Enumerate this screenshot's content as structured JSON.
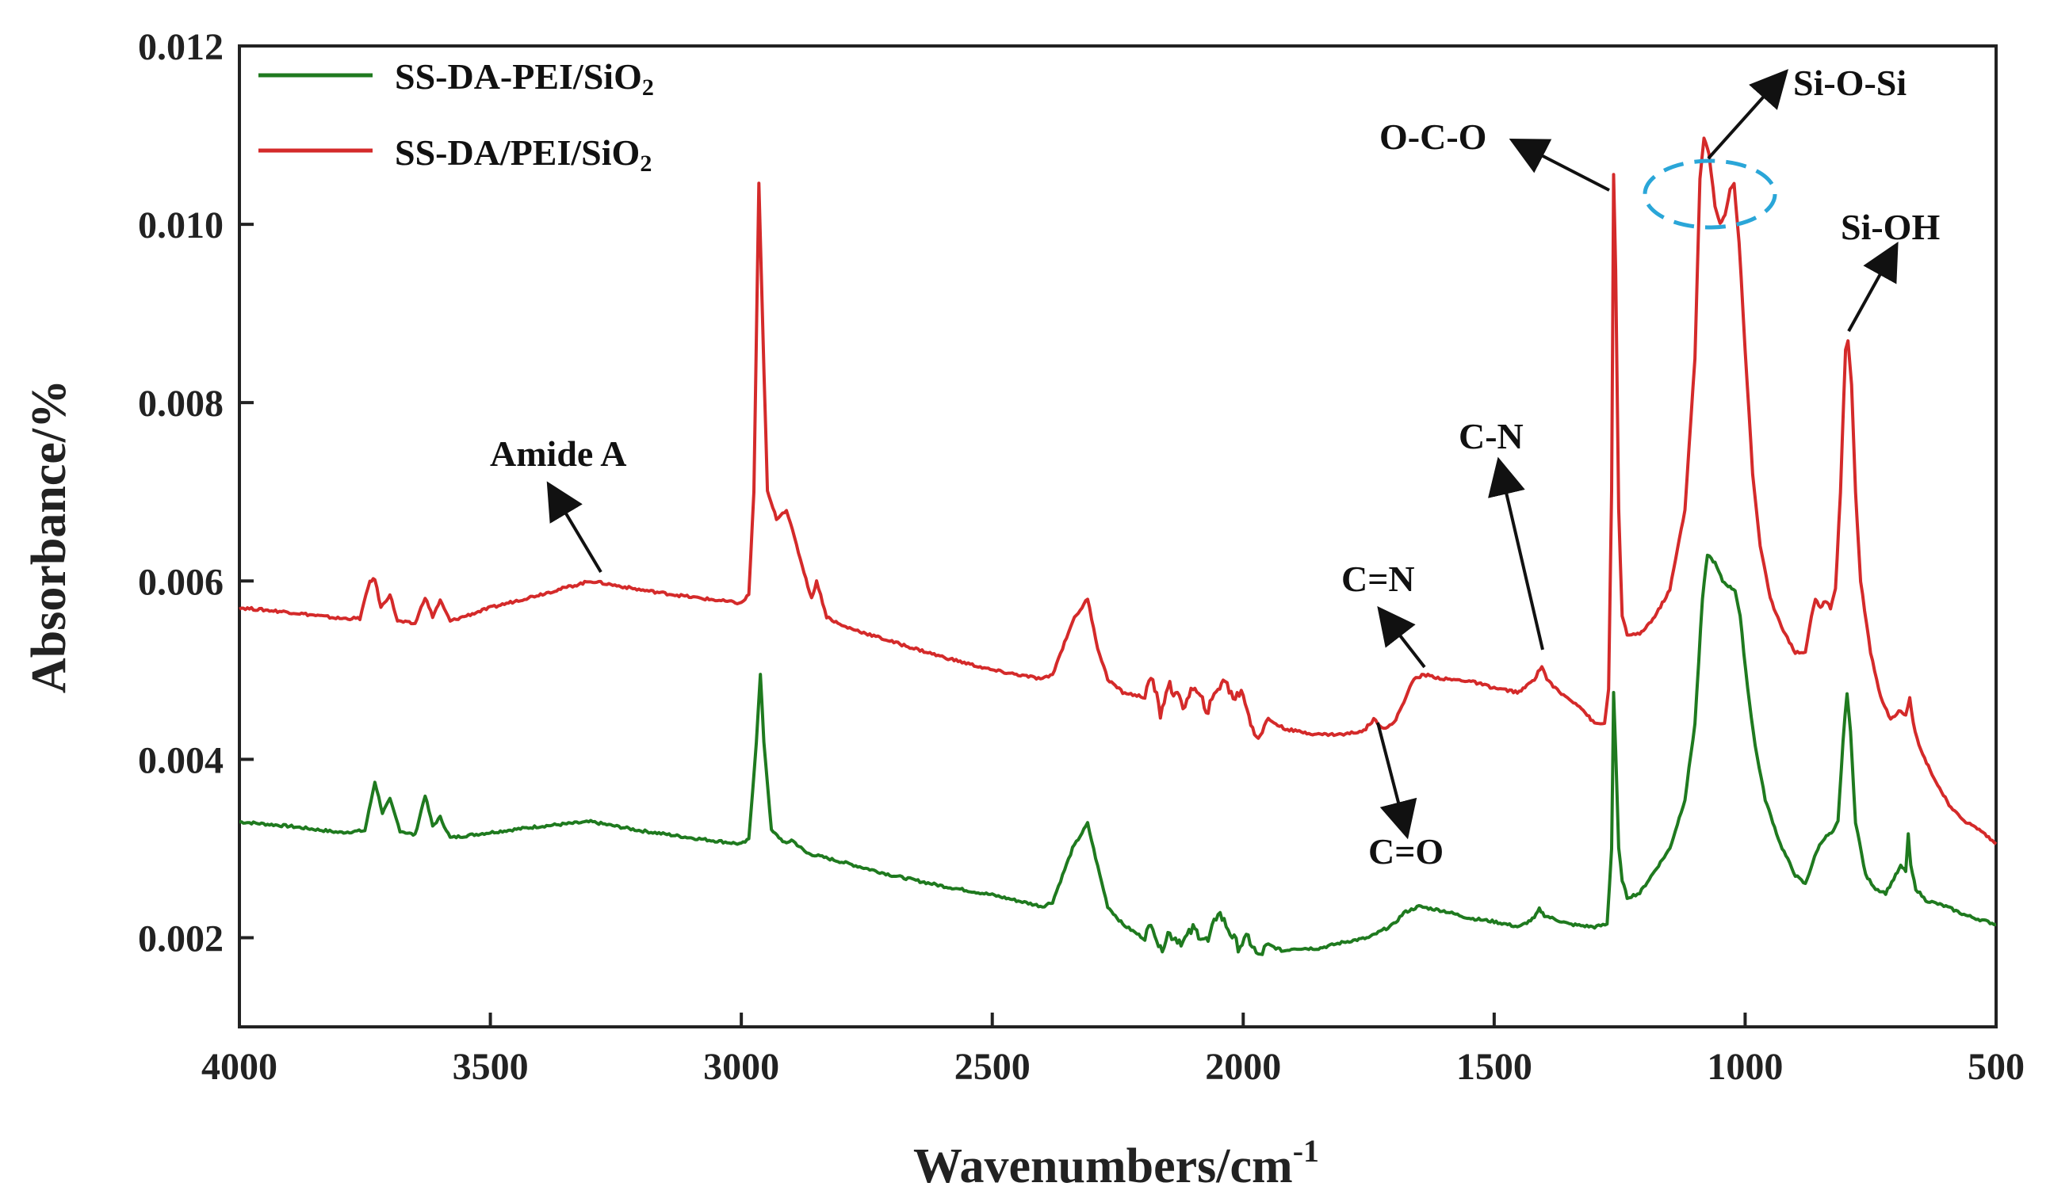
{
  "chart_data": {
    "type": "line",
    "title": "",
    "xlabel": "Wavenumbers/cm",
    "xlabel_sup": "-1",
    "ylabel": "Absorbance/%",
    "xlim": [
      4000,
      500
    ],
    "ylim": [
      0.001,
      0.012
    ],
    "x_ticks": [
      4000,
      3500,
      3000,
      2500,
      2000,
      1500,
      1000,
      500
    ],
    "y_ticks": [
      0.002,
      0.004,
      0.006,
      0.008,
      0.01,
      0.012
    ],
    "y_tick_labels": [
      "0.002",
      "0.004",
      "0.006",
      "0.008",
      "0.010",
      "0.012"
    ],
    "x_tick_labels": [
      "4000",
      "3500",
      "3000",
      "2500",
      "2000",
      "1500",
      "1000",
      "500"
    ],
    "legend_position": "top-left",
    "series": [
      {
        "name": "SS-DA-PEI/SiO",
        "name_sub": "2",
        "color": "#1f7a1f",
        "points": [
          [
            4000,
            0.0033
          ],
          [
            3900,
            0.00325
          ],
          [
            3800,
            0.00318
          ],
          [
            3750,
            0.0032
          ],
          [
            3730,
            0.00375
          ],
          [
            3715,
            0.0034
          ],
          [
            3700,
            0.00355
          ],
          [
            3680,
            0.0032
          ],
          [
            3650,
            0.00315
          ],
          [
            3630,
            0.0036
          ],
          [
            3615,
            0.00325
          ],
          [
            3600,
            0.00335
          ],
          [
            3580,
            0.00312
          ],
          [
            3500,
            0.00318
          ],
          [
            3400,
            0.00325
          ],
          [
            3300,
            0.0033
          ],
          [
            3200,
            0.0032
          ],
          [
            3100,
            0.00312
          ],
          [
            3000,
            0.00305
          ],
          [
            2985,
            0.0031
          ],
          [
            2970,
            0.0042
          ],
          [
            2962,
            0.00495
          ],
          [
            2955,
            0.0042
          ],
          [
            2940,
            0.0032
          ],
          [
            2910,
            0.00305
          ],
          [
            2900,
            0.0031
          ],
          [
            2870,
            0.00295
          ],
          [
            2800,
            0.00285
          ],
          [
            2700,
            0.0027
          ],
          [
            2600,
            0.00258
          ],
          [
            2500,
            0.00248
          ],
          [
            2400,
            0.00235
          ],
          [
            2380,
            0.0024
          ],
          [
            2340,
            0.003
          ],
          [
            2310,
            0.00328
          ],
          [
            2290,
            0.0028
          ],
          [
            2270,
            0.00235
          ],
          [
            2240,
            0.00215
          ],
          [
            2200,
            0.002
          ],
          [
            2180,
            0.00215
          ],
          [
            2165,
            0.00185
          ],
          [
            2150,
            0.00205
          ],
          [
            2120,
            0.00195
          ],
          [
            2100,
            0.0021
          ],
          [
            2070,
            0.00195
          ],
          [
            2050,
            0.0023
          ],
          [
            2030,
            0.0021
          ],
          [
            2010,
            0.0019
          ],
          [
            1990,
            0.002
          ],
          [
            1970,
            0.00178
          ],
          [
            1950,
            0.00192
          ],
          [
            1920,
            0.00185
          ],
          [
            1900,
            0.00188
          ],
          [
            1850,
            0.00188
          ],
          [
            1800,
            0.00195
          ],
          [
            1750,
            0.002
          ],
          [
            1700,
            0.00215
          ],
          [
            1680,
            0.00228
          ],
          [
            1650,
            0.00235
          ],
          [
            1600,
            0.0023
          ],
          [
            1550,
            0.00222
          ],
          [
            1500,
            0.00218
          ],
          [
            1450,
            0.00212
          ],
          [
            1420,
            0.00222
          ],
          [
            1410,
            0.00232
          ],
          [
            1400,
            0.00225
          ],
          [
            1350,
            0.00215
          ],
          [
            1300,
            0.00212
          ],
          [
            1275,
            0.00215
          ],
          [
            1266,
            0.003
          ],
          [
            1262,
            0.00475
          ],
          [
            1258,
            0.0041
          ],
          [
            1252,
            0.003
          ],
          [
            1245,
            0.00265
          ],
          [
            1235,
            0.00245
          ],
          [
            1210,
            0.0025
          ],
          [
            1180,
            0.00275
          ],
          [
            1150,
            0.003
          ],
          [
            1120,
            0.00355
          ],
          [
            1100,
            0.0044
          ],
          [
            1085,
            0.0058
          ],
          [
            1075,
            0.0063
          ],
          [
            1060,
            0.0062
          ],
          [
            1045,
            0.006
          ],
          [
            1030,
            0.00593
          ],
          [
            1020,
            0.0059
          ],
          [
            1010,
            0.0056
          ],
          [
            995,
            0.0048
          ],
          [
            980,
            0.00415
          ],
          [
            960,
            0.00355
          ],
          [
            930,
            0.00305
          ],
          [
            900,
            0.0027
          ],
          [
            880,
            0.0026
          ],
          [
            865,
            0.00285
          ],
          [
            855,
            0.003
          ],
          [
            845,
            0.0031
          ],
          [
            835,
            0.00315
          ],
          [
            825,
            0.00318
          ],
          [
            815,
            0.0033
          ],
          [
            805,
            0.0042
          ],
          [
            797,
            0.00475
          ],
          [
            790,
            0.0043
          ],
          [
            780,
            0.0033
          ],
          [
            760,
            0.0027
          ],
          [
            740,
            0.00255
          ],
          [
            720,
            0.0025
          ],
          [
            700,
            0.0027
          ],
          [
            690,
            0.0028
          ],
          [
            680,
            0.00275
          ],
          [
            675,
            0.00315
          ],
          [
            670,
            0.0028
          ],
          [
            660,
            0.00255
          ],
          [
            640,
            0.00242
          ],
          [
            600,
            0.00235
          ],
          [
            560,
            0.00225
          ],
          [
            500,
            0.00215
          ]
        ]
      },
      {
        "name": "SS-DA/PEI/SiO",
        "name_sub": "2",
        "color": "#d42a2a",
        "points": [
          [
            4000,
            0.0057
          ],
          [
            3900,
            0.00565
          ],
          [
            3800,
            0.00558
          ],
          [
            3760,
            0.00558
          ],
          [
            3740,
            0.006
          ],
          [
            3730,
            0.00602
          ],
          [
            3718,
            0.0057
          ],
          [
            3700,
            0.00585
          ],
          [
            3685,
            0.00555
          ],
          [
            3650,
            0.00552
          ],
          [
            3630,
            0.00582
          ],
          [
            3615,
            0.0056
          ],
          [
            3600,
            0.00578
          ],
          [
            3580,
            0.00555
          ],
          [
            3500,
            0.0057
          ],
          [
            3400,
            0.00585
          ],
          [
            3300,
            0.006
          ],
          [
            3200,
            0.0059
          ],
          [
            3100,
            0.00582
          ],
          [
            3000,
            0.00575
          ],
          [
            2985,
            0.00585
          ],
          [
            2975,
            0.007
          ],
          [
            2965,
            0.01045
          ],
          [
            2958,
            0.009
          ],
          [
            2948,
            0.007
          ],
          [
            2930,
            0.0067
          ],
          [
            2910,
            0.0068
          ],
          [
            2890,
            0.0064
          ],
          [
            2860,
            0.0058
          ],
          [
            2850,
            0.006
          ],
          [
            2830,
            0.0056
          ],
          [
            2800,
            0.0055
          ],
          [
            2700,
            0.00532
          ],
          [
            2600,
            0.00515
          ],
          [
            2500,
            0.005
          ],
          [
            2400,
            0.0049
          ],
          [
            2380,
            0.00495
          ],
          [
            2340,
            0.00555
          ],
          [
            2310,
            0.0058
          ],
          [
            2290,
            0.00525
          ],
          [
            2270,
            0.0049
          ],
          [
            2240,
            0.00475
          ],
          [
            2200,
            0.0047
          ],
          [
            2180,
            0.0049
          ],
          [
            2165,
            0.0045
          ],
          [
            2150,
            0.00485
          ],
          [
            2120,
            0.0046
          ],
          [
            2100,
            0.0048
          ],
          [
            2070,
            0.00455
          ],
          [
            2050,
            0.0048
          ],
          [
            2040,
            0.0049
          ],
          [
            2020,
            0.0047
          ],
          [
            2000,
            0.00475
          ],
          [
            1985,
            0.0044
          ],
          [
            1970,
            0.00425
          ],
          [
            1950,
            0.00445
          ],
          [
            1920,
            0.00435
          ],
          [
            1900,
            0.00432
          ],
          [
            1850,
            0.00428
          ],
          [
            1800,
            0.00428
          ],
          [
            1760,
            0.00432
          ],
          [
            1740,
            0.00445
          ],
          [
            1720,
            0.00435
          ],
          [
            1700,
            0.0044
          ],
          [
            1680,
            0.00465
          ],
          [
            1660,
            0.0049
          ],
          [
            1640,
            0.00495
          ],
          [
            1600,
            0.0049
          ],
          [
            1550,
            0.00488
          ],
          [
            1500,
            0.0048
          ],
          [
            1450,
            0.00475
          ],
          [
            1420,
            0.0049
          ],
          [
            1405,
            0.00505
          ],
          [
            1395,
            0.0049
          ],
          [
            1370,
            0.00475
          ],
          [
            1330,
            0.0046
          ],
          [
            1300,
            0.0044
          ],
          [
            1280,
            0.0044
          ],
          [
            1272,
            0.0048
          ],
          [
            1266,
            0.007
          ],
          [
            1262,
            0.01055
          ],
          [
            1258,
            0.0095
          ],
          [
            1252,
            0.0068
          ],
          [
            1245,
            0.0056
          ],
          [
            1235,
            0.0054
          ],
          [
            1210,
            0.0054
          ],
          [
            1180,
            0.0056
          ],
          [
            1150,
            0.0059
          ],
          [
            1120,
            0.0068
          ],
          [
            1100,
            0.0085
          ],
          [
            1090,
            0.0105
          ],
          [
            1082,
            0.01097
          ],
          [
            1072,
            0.0108
          ],
          [
            1060,
            0.0102
          ],
          [
            1050,
            0.01
          ],
          [
            1040,
            0.0101
          ],
          [
            1030,
            0.0104
          ],
          [
            1022,
            0.01045
          ],
          [
            1012,
            0.0098
          ],
          [
            1000,
            0.0086
          ],
          [
            985,
            0.0072
          ],
          [
            970,
            0.0064
          ],
          [
            950,
            0.0058
          ],
          [
            920,
            0.0054
          ],
          [
            900,
            0.0052
          ],
          [
            880,
            0.0052
          ],
          [
            868,
            0.0056
          ],
          [
            860,
            0.0058
          ],
          [
            850,
            0.0057
          ],
          [
            840,
            0.00578
          ],
          [
            830,
            0.0057
          ],
          [
            820,
            0.0059
          ],
          [
            810,
            0.007
          ],
          [
            800,
            0.0086
          ],
          [
            795,
            0.0087
          ],
          [
            788,
            0.0082
          ],
          [
            780,
            0.007
          ],
          [
            770,
            0.006
          ],
          [
            750,
            0.0052
          ],
          [
            730,
            0.0047
          ],
          [
            710,
            0.00445
          ],
          [
            690,
            0.00455
          ],
          [
            680,
            0.0045
          ],
          [
            672,
            0.0047
          ],
          [
            665,
            0.0044
          ],
          [
            650,
            0.0041
          ],
          [
            620,
            0.00375
          ],
          [
            590,
            0.00345
          ],
          [
            560,
            0.0033
          ],
          [
            530,
            0.0032
          ],
          [
            500,
            0.00305
          ]
        ]
      }
    ],
    "annotations": [
      {
        "label": "Amide A",
        "at": [
          3280,
          0.00602
        ]
      },
      {
        "label": "O-C-O",
        "at": [
          1262,
          0.01055
        ]
      },
      {
        "label": "Si-O-Si",
        "at": [
          1082,
          0.01097
        ]
      },
      {
        "label": "Si-OH",
        "at": [
          795,
          0.0087
        ]
      },
      {
        "label": "C-N",
        "at": [
          1405,
          0.00505
        ]
      },
      {
        "label": "C=N",
        "at": [
          1640,
          0.00495
        ]
      },
      {
        "label": "C=O",
        "at": [
          1740,
          0.00445
        ]
      }
    ]
  }
}
